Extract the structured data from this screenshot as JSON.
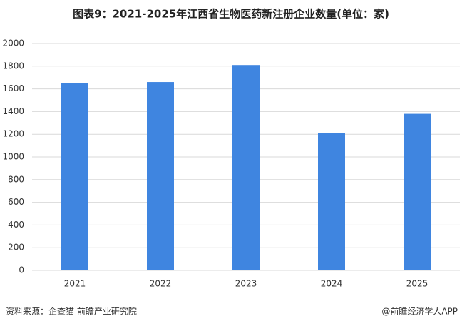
{
  "chart_data": {
    "type": "bar",
    "title": "图表9：2021-2025年江西省生物医药新注册企业数量(单位：家)",
    "categories": [
      "2021",
      "2022",
      "2023",
      "2024",
      "2025"
    ],
    "values": [
      1650,
      1660,
      1810,
      1210,
      1380
    ],
    "color": "#3f85e0",
    "ylim": [
      0,
      2000
    ],
    "yticks": [
      0,
      200,
      400,
      600,
      800,
      1000,
      1200,
      1400,
      1600,
      1800,
      2000
    ],
    "grid": true,
    "source": "资料来源：企查猫 前瞻产业研究院",
    "credit": "@前瞻经济学人APP"
  }
}
